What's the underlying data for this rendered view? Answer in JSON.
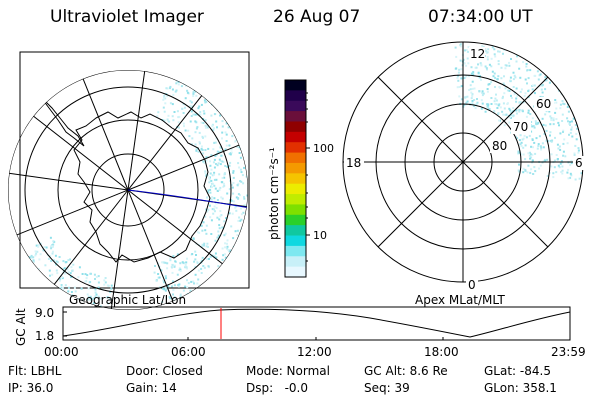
{
  "header": {
    "instrument": "Ultraviolet Imager",
    "date": "26 Aug 07",
    "time": "07:34:00 UT"
  },
  "colorbar": {
    "unit_label": "photon cm⁻²s⁻¹",
    "ticks": [
      "100",
      "10"
    ],
    "colors": [
      "#000020",
      "#20004a",
      "#3a0a5a",
      "#6a0f3a",
      "#8f0000",
      "#c40000",
      "#e23000",
      "#f07000",
      "#f49a00",
      "#f5c400",
      "#ecec00",
      "#c0ec00",
      "#7ee000",
      "#2ad02a",
      "#10c8a0",
      "#10d8e0",
      "#7ee8f0",
      "#c8f0f8",
      "#e8f8ff"
    ]
  },
  "left_panel": {
    "label": "Geographic Lat/Lon"
  },
  "right_panel": {
    "label": "Apex MLat/MLT",
    "mlt_labels": [
      "12",
      "18",
      "6",
      "0"
    ],
    "lat_labels": [
      "60",
      "70",
      "80"
    ]
  },
  "altitude_plot": {
    "y_axis_label": "GC Alt",
    "y_ticks": [
      "9.0",
      "1.8"
    ],
    "x_ticks": [
      "00:00",
      "06:00",
      "12:00",
      "18:00",
      "23:59"
    ],
    "current_time_marker": "07:34"
  },
  "footer": {
    "col1": [
      "Flt: LBHL",
      "IP: 36.0"
    ],
    "col2": [
      "Door: Closed",
      "Gain: 14"
    ],
    "col3": [
      "Mode: Normal",
      "Dsp:   -0.0"
    ],
    "col4": [
      "GC Alt: 8.6 Re",
      "Seq: 39"
    ],
    "col5": [
      "GLat: -84.5",
      "GLon: 358.1"
    ]
  },
  "colors": {
    "aurora": "#8fe0ea",
    "marker": "#ff0000",
    "terminator": "#0000c0"
  }
}
